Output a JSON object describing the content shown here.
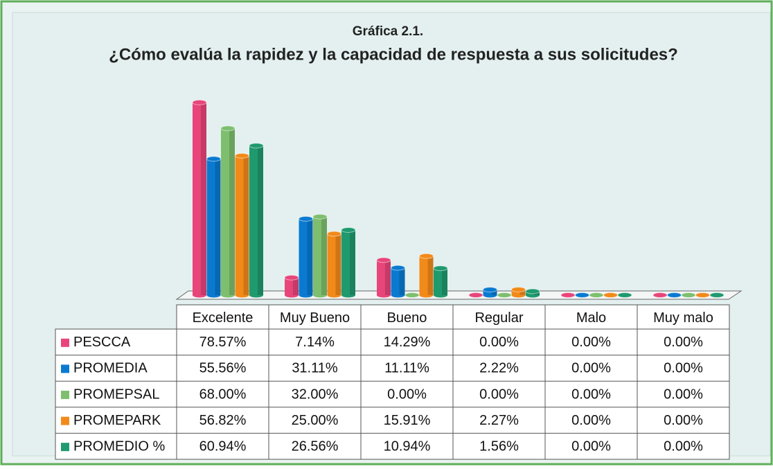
{
  "chart_data": {
    "type": "bar",
    "title": "Gráfica 2.1.",
    "subtitle": "¿Cómo evalúa la rapidez y la capacidad de respuesta a sus solicitudes?",
    "categories": [
      "Excelente",
      "Muy Bueno",
      "Bueno",
      "Regular",
      "Malo",
      "Muy malo"
    ],
    "series": [
      {
        "name": "PESCCA",
        "color": "#e8457a",
        "values": [
          78.57,
          7.14,
          14.29,
          0,
          0,
          0
        ],
        "value_labels": [
          "78.57%",
          "7.14%",
          "14.29%",
          "0.00%",
          "0.00%",
          "0.00%"
        ]
      },
      {
        "name": "PROMEDIA",
        "color": "#0a7ad1",
        "values": [
          55.56,
          31.11,
          11.11,
          2.22,
          0,
          0
        ],
        "value_labels": [
          "55.56%",
          "31.11%",
          "11.11%",
          "2.22%",
          "0.00%",
          "0.00%"
        ]
      },
      {
        "name": "PROMEPSAL",
        "color": "#7dbf6e",
        "values": [
          68,
          32,
          0,
          0,
          0,
          0
        ],
        "value_labels": [
          "68.00%",
          "32.00%",
          "0.00%",
          "0.00%",
          "0.00%",
          "0.00%"
        ]
      },
      {
        "name": "PROMEPARK",
        "color": "#f28a1a",
        "values": [
          56.82,
          25,
          15.91,
          2.27,
          0,
          0
        ],
        "value_labels": [
          "56.82%",
          "25.00%",
          "15.91%",
          "2.27%",
          "0.00%",
          "0.00%"
        ]
      },
      {
        "name": "PROMEDIO %",
        "color": "#1f9a6e",
        "values": [
          60.94,
          26.56,
          10.94,
          1.56,
          0,
          0
        ],
        "value_labels": [
          "60.94%",
          "26.56%",
          "10.94%",
          "1.56%",
          "0.00%",
          "0.00%"
        ]
      }
    ]
  }
}
